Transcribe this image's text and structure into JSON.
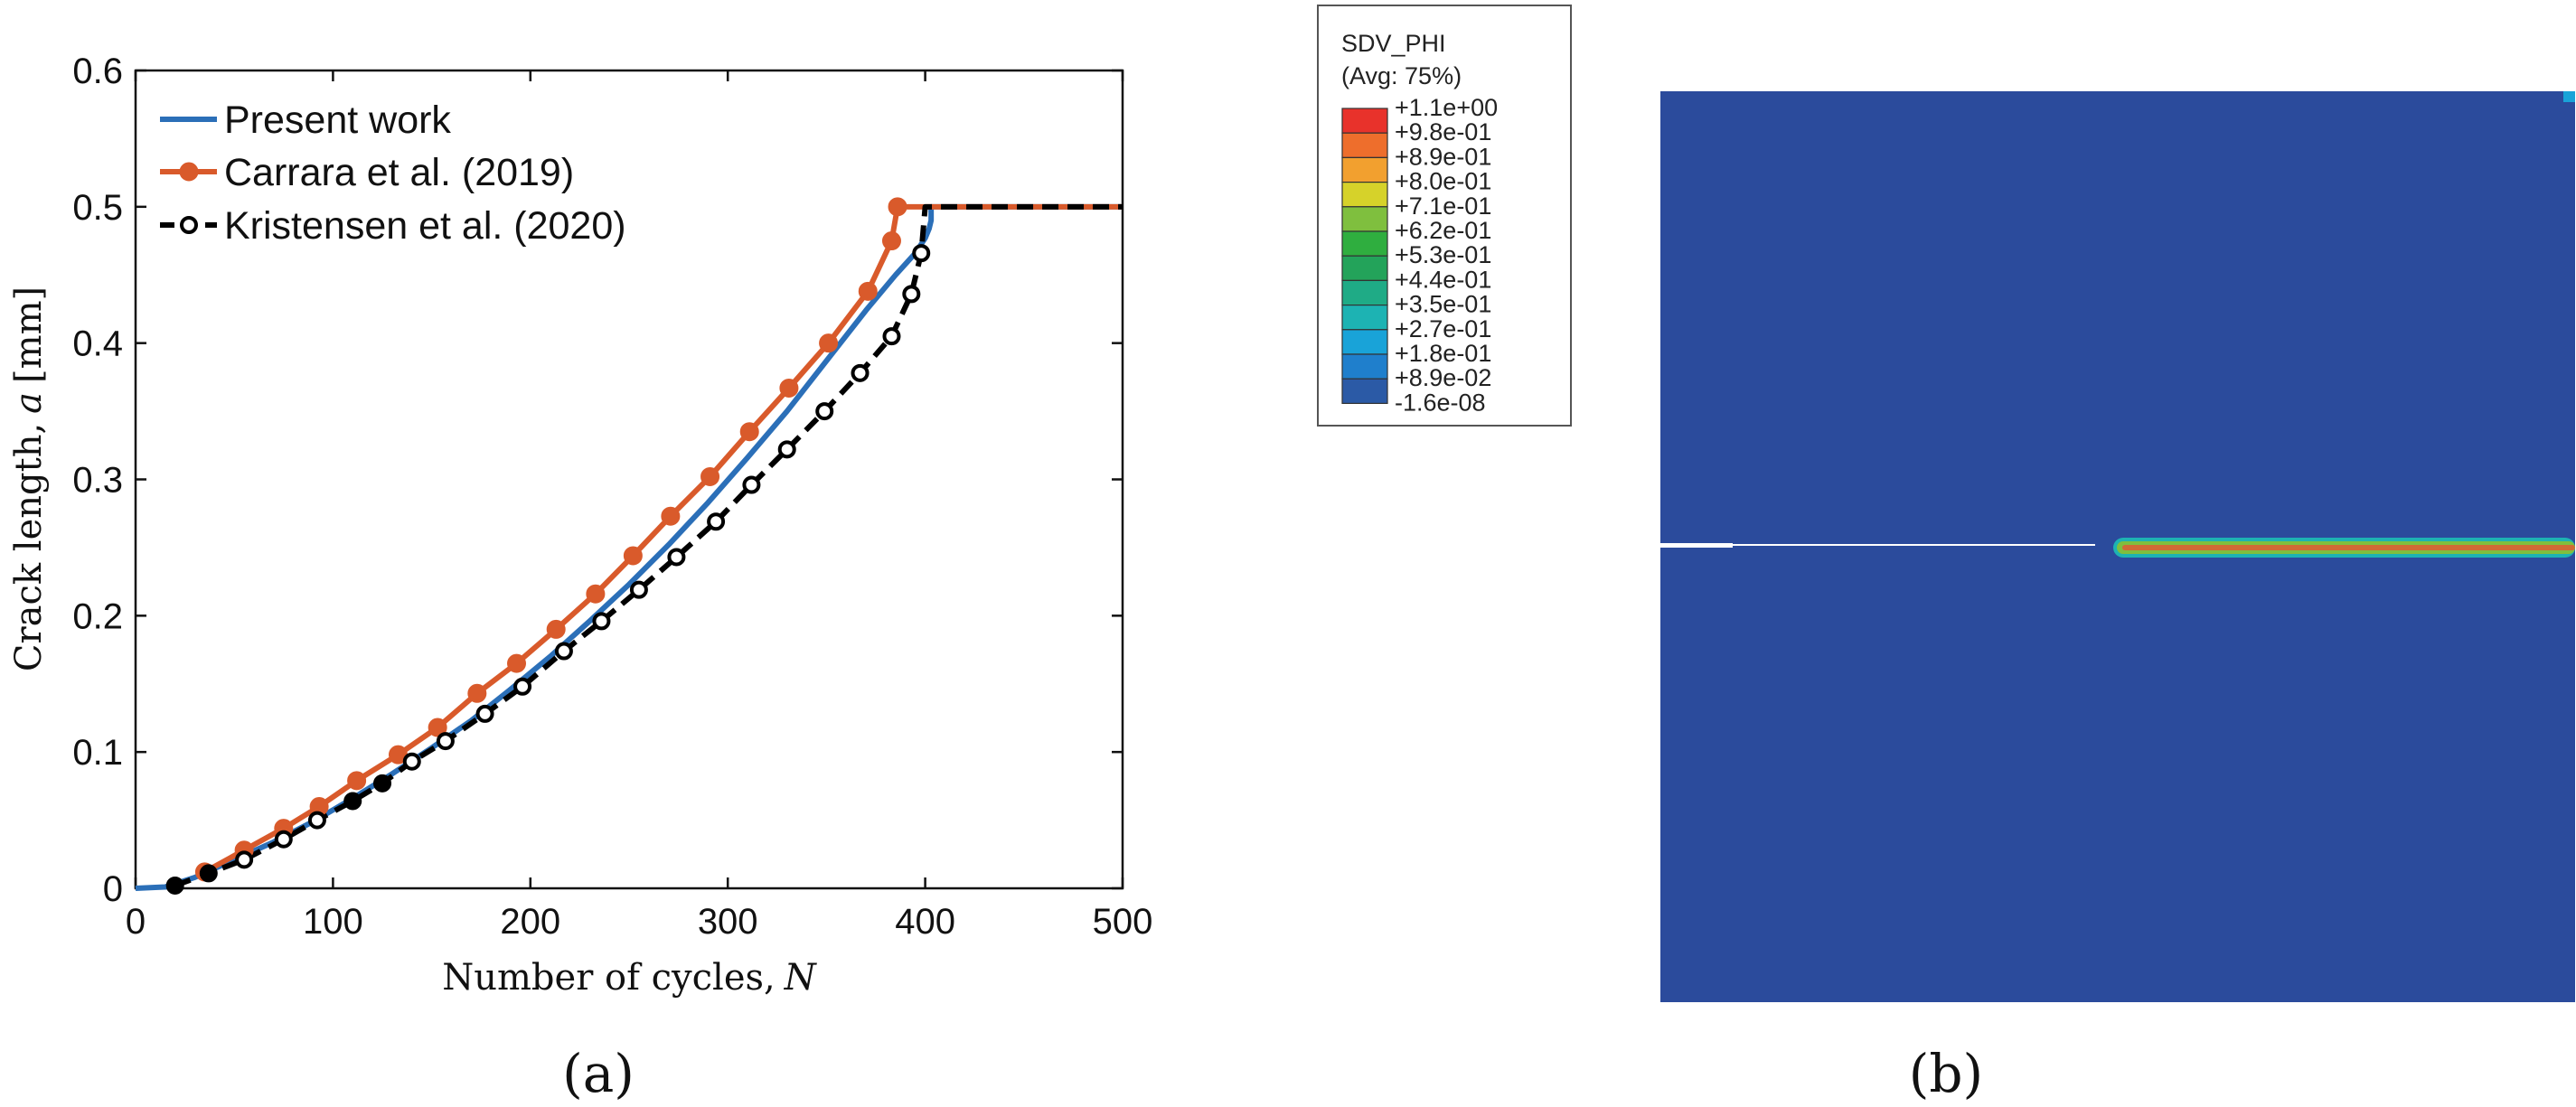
{
  "chart_data": [
    {
      "type": "line",
      "title": "",
      "panel_label": "(a)",
      "xlabel": "Number of cycles,",
      "xlabel_symbol": "N",
      "ylabel": "Crack length,",
      "ylabel_symbol": "a",
      "ylabel_unit": "[mm]",
      "xlim": [
        0,
        500
      ],
      "ylim": [
        0,
        0.6
      ],
      "xticks": [
        "0",
        "100",
        "200",
        "300",
        "400",
        "500"
      ],
      "yticks": [
        "0",
        "0.1",
        "0.2",
        "0.3",
        "0.4",
        "0.5",
        "0.6"
      ],
      "grid": false,
      "legend_position": "top-left",
      "series": [
        {
          "name": "Present work",
          "color": "#2b6fb8",
          "style": "solid",
          "x": [
            0,
            15,
            30,
            50,
            70,
            90,
            110,
            130,
            150,
            170,
            190,
            210,
            230,
            250,
            270,
            290,
            310,
            330,
            350,
            370,
            385,
            395,
            400,
            402,
            403,
            403,
            430,
            460,
            500
          ],
          "y": [
            0,
            0.001,
            0.008,
            0.021,
            0.034,
            0.049,
            0.066,
            0.084,
            0.103,
            0.123,
            0.146,
            0.17,
            0.196,
            0.223,
            0.252,
            0.283,
            0.316,
            0.35,
            0.387,
            0.424,
            0.45,
            0.466,
            0.477,
            0.484,
            0.49,
            0.5,
            0.5,
            0.5,
            0.5
          ]
        },
        {
          "name": "Carrara et al. (2019)",
          "color": "#d95a2b",
          "style": "solid-marker",
          "x": [
            35,
            55,
            75,
            93,
            112,
            133,
            153,
            173,
            193,
            213,
            233,
            252,
            271,
            291,
            311,
            331,
            351,
            371,
            383,
            386,
            390,
            420,
            460,
            500
          ],
          "y": [
            0.012,
            0.028,
            0.044,
            0.06,
            0.079,
            0.098,
            0.118,
            0.143,
            0.165,
            0.19,
            0.216,
            0.244,
            0.273,
            0.302,
            0.335,
            0.367,
            0.4,
            0.438,
            0.475,
            0.5,
            0.5,
            0.5,
            0.5,
            0.5
          ]
        },
        {
          "name": "Kristensen et al. (2020)",
          "color": "#000000",
          "style": "dashed-marker",
          "x": [
            20,
            37,
            55,
            75,
            92,
            110,
            125,
            140,
            157,
            177,
            196,
            217,
            236,
            255,
            274,
            294,
            312,
            330,
            349,
            367,
            383,
            393,
            398,
            400,
            430,
            470,
            500
          ],
          "y": [
            0.002,
            0.011,
            0.021,
            0.036,
            0.05,
            0.064,
            0.077,
            0.093,
            0.108,
            0.128,
            0.148,
            0.174,
            0.196,
            0.219,
            0.243,
            0.269,
            0.296,
            0.322,
            0.35,
            0.378,
            0.405,
            0.436,
            0.466,
            0.5,
            0.5,
            0.5,
            0.5
          ]
        }
      ]
    },
    {
      "type": "heatmap",
      "panel_label": "(b)",
      "colorbar_title_1": "SDV_PHI",
      "colorbar_title_2": "(Avg: 75%)",
      "colorbar_labels": [
        "+1.1e+00",
        "+9.8e-01",
        "+8.9e-01",
        "+8.0e-01",
        "+7.1e-01",
        "+6.2e-01",
        "+5.3e-01",
        "+4.4e-01",
        "+3.5e-01",
        "+2.7e-01",
        "+1.8e-01",
        "+8.9e-02",
        "-1.6e-08"
      ],
      "colorbar_colors": [
        "#e8322b",
        "#ee6e2c",
        "#f2a02f",
        "#d6d22a",
        "#7fbf3e",
        "#2fae3f",
        "#23a35a",
        "#1fab86",
        "#1db3b3",
        "#19a3d8",
        "#1f7fcc",
        "#2b5aa6"
      ],
      "field_color": "#2b4b9c",
      "crack_band_color": "#d06a35"
    }
  ]
}
